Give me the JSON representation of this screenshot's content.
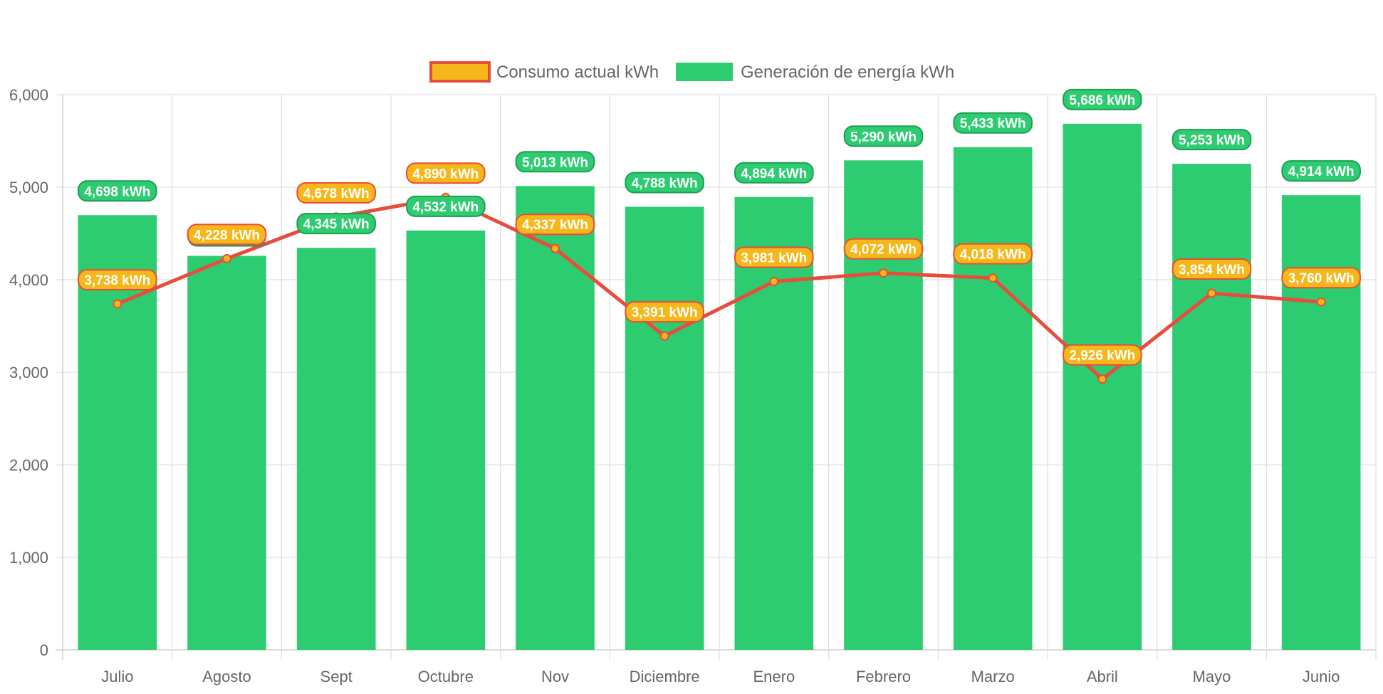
{
  "chart_data": {
    "type": "bar",
    "categories": [
      "Julio",
      "Agosto",
      "Sept",
      "Octubre",
      "Nov",
      "Diciembre",
      "Enero",
      "Febrero",
      "Marzo",
      "Abril",
      "Mayo",
      "Junio"
    ],
    "series": [
      {
        "name": "Generación de energía kWh",
        "kind": "bar",
        "color": "#2ecc71",
        "label_border": "#1f9d55",
        "values": [
          4698,
          4258,
          4345,
          4532,
          5013,
          4788,
          4894,
          5290,
          5433,
          5686,
          5253,
          4914
        ],
        "labels": [
          "4,698 kWh",
          "",
          "4,345 kWh",
          "4,532 kWh",
          "5,013 kWh",
          "4,788 kWh",
          "4,894 kWh",
          "5,290 kWh",
          "5,433 kWh",
          "5,686 kWh",
          "5,253 kWh",
          "4,914 kWh"
        ]
      },
      {
        "name": "Consumo actual kWh",
        "kind": "line",
        "color": "#e74c3c",
        "point_color": "#f6b71a",
        "values": [
          3738,
          4228,
          4678,
          4890,
          4337,
          3391,
          3981,
          4072,
          4018,
          2926,
          3854,
          3760
        ],
        "labels": [
          "3,738 kWh",
          "4,228 kWh",
          "4,678 kWh",
          "4,890 kWh",
          "4,337 kWh",
          "3,391 kWh",
          "3,981 kWh",
          "4,072 kWh",
          "4,018 kWh",
          "2,926 kWh",
          "3,854 kWh",
          "3,760 kWh"
        ]
      }
    ],
    "ylim": [
      0,
      6000
    ],
    "yticks": [
      0,
      1000,
      2000,
      3000,
      4000,
      5000,
      6000
    ],
    "ytick_labels": [
      "0",
      "1,000",
      "2,000",
      "3,000",
      "4,000",
      "5,000",
      "6,000"
    ],
    "legend_position": "top-center",
    "grid": true,
    "title": "",
    "xlabel": "",
    "ylabel": ""
  },
  "legend": {
    "items": [
      {
        "label": "Consumo actual kWh",
        "fill": "#f6b71a",
        "border": "#e74c3c"
      },
      {
        "label": "Generación de energía kWh",
        "fill": "#2ecc71",
        "border": "#2ecc71"
      }
    ]
  }
}
